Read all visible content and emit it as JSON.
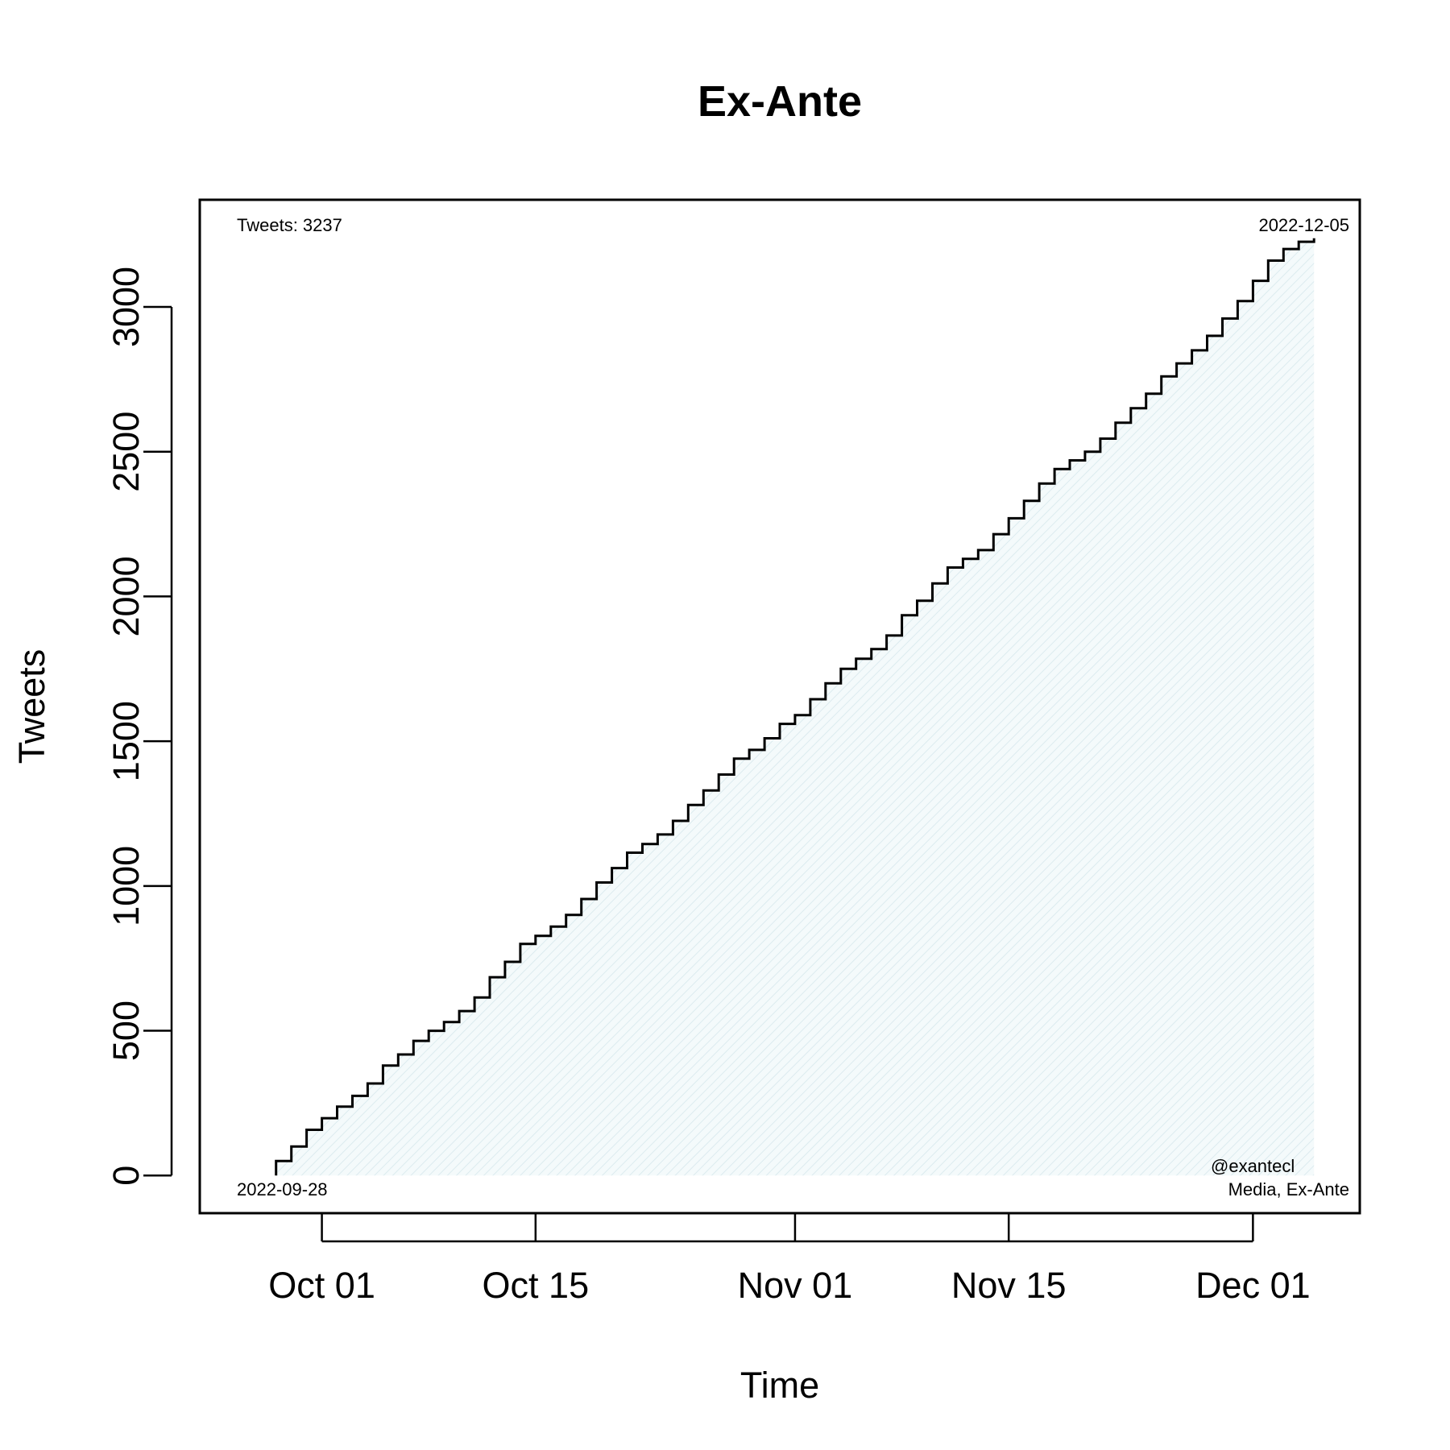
{
  "chart_data": {
    "type": "line",
    "title": "Ex-Ante",
    "xlabel": "Time",
    "ylabel": "Tweets",
    "x_axis": {
      "type": "date",
      "range": [
        "2022-09-23",
        "2022-12-08"
      ],
      "ticks": [
        {
          "date": "2022-10-01",
          "label": "Oct 01"
        },
        {
          "date": "2022-10-15",
          "label": "Oct 15"
        },
        {
          "date": "2022-11-01",
          "label": "Nov 01"
        },
        {
          "date": "2022-11-15",
          "label": "Nov 15"
        },
        {
          "date": "2022-12-01",
          "label": "Dec 01"
        }
      ]
    },
    "y_axis": {
      "range": [
        -130,
        3370
      ],
      "ticks": [
        {
          "value": 0,
          "label": "0"
        },
        {
          "value": 500,
          "label": "500"
        },
        {
          "value": 1000,
          "label": "1000"
        },
        {
          "value": 1500,
          "label": "1500"
        },
        {
          "value": 2000,
          "label": "2000"
        },
        {
          "value": 2500,
          "label": "2500"
        },
        {
          "value": 3000,
          "label": "3000"
        }
      ]
    },
    "grid": false,
    "legend": null,
    "step_series": {
      "name": "",
      "step": "post",
      "dates": [
        "2022-09-28",
        "2022-09-29",
        "2022-09-30",
        "2022-10-01",
        "2022-10-02",
        "2022-10-03",
        "2022-10-04",
        "2022-10-05",
        "2022-10-06",
        "2022-10-07",
        "2022-10-08",
        "2022-10-09",
        "2022-10-10",
        "2022-10-11",
        "2022-10-12",
        "2022-10-13",
        "2022-10-14",
        "2022-10-15",
        "2022-10-16",
        "2022-10-17",
        "2022-10-18",
        "2022-10-19",
        "2022-10-20",
        "2022-10-21",
        "2022-10-22",
        "2022-10-23",
        "2022-10-24",
        "2022-10-25",
        "2022-10-26",
        "2022-10-27",
        "2022-10-28",
        "2022-10-29",
        "2022-10-30",
        "2022-10-31",
        "2022-11-01",
        "2022-11-02",
        "2022-11-03",
        "2022-11-04",
        "2022-11-05",
        "2022-11-06",
        "2022-11-07",
        "2022-11-08",
        "2022-11-09",
        "2022-11-10",
        "2022-11-11",
        "2022-11-12",
        "2022-11-13",
        "2022-11-14",
        "2022-11-15",
        "2022-11-16",
        "2022-11-17",
        "2022-11-18",
        "2022-11-19",
        "2022-11-20",
        "2022-11-21",
        "2022-11-22",
        "2022-11-23",
        "2022-11-24",
        "2022-11-25",
        "2022-11-26",
        "2022-11-27",
        "2022-11-28",
        "2022-11-29",
        "2022-11-30",
        "2022-12-01",
        "2022-12-02",
        "2022-12-03",
        "2022-12-04",
        "2022-12-05"
      ],
      "values": [
        50,
        100,
        158,
        198,
        238,
        275,
        318,
        380,
        418,
        465,
        500,
        530,
        568,
        615,
        685,
        738,
        800,
        828,
        860,
        900,
        955,
        1012,
        1062,
        1115,
        1145,
        1178,
        1225,
        1280,
        1330,
        1385,
        1440,
        1470,
        1510,
        1560,
        1590,
        1645,
        1700,
        1750,
        1785,
        1818,
        1865,
        1935,
        1985,
        2045,
        2100,
        2130,
        2160,
        2215,
        2270,
        2330,
        2390,
        2440,
        2470,
        2500,
        2545,
        2600,
        2650,
        2700,
        2760,
        2805,
        2850,
        2900,
        2960,
        3020,
        3090,
        3160,
        3200,
        3225,
        3237
      ],
      "start_value": 0,
      "line_color": "#000000",
      "fill_color": "#eef6f8"
    },
    "annotations": {
      "top_left": "Tweets: 3237",
      "top_right": "2022-12-05",
      "bottom_left": "2022-09-28",
      "bottom_right_line1": "@exantecl",
      "bottom_right_line2": "Media, Ex-Ante"
    }
  }
}
